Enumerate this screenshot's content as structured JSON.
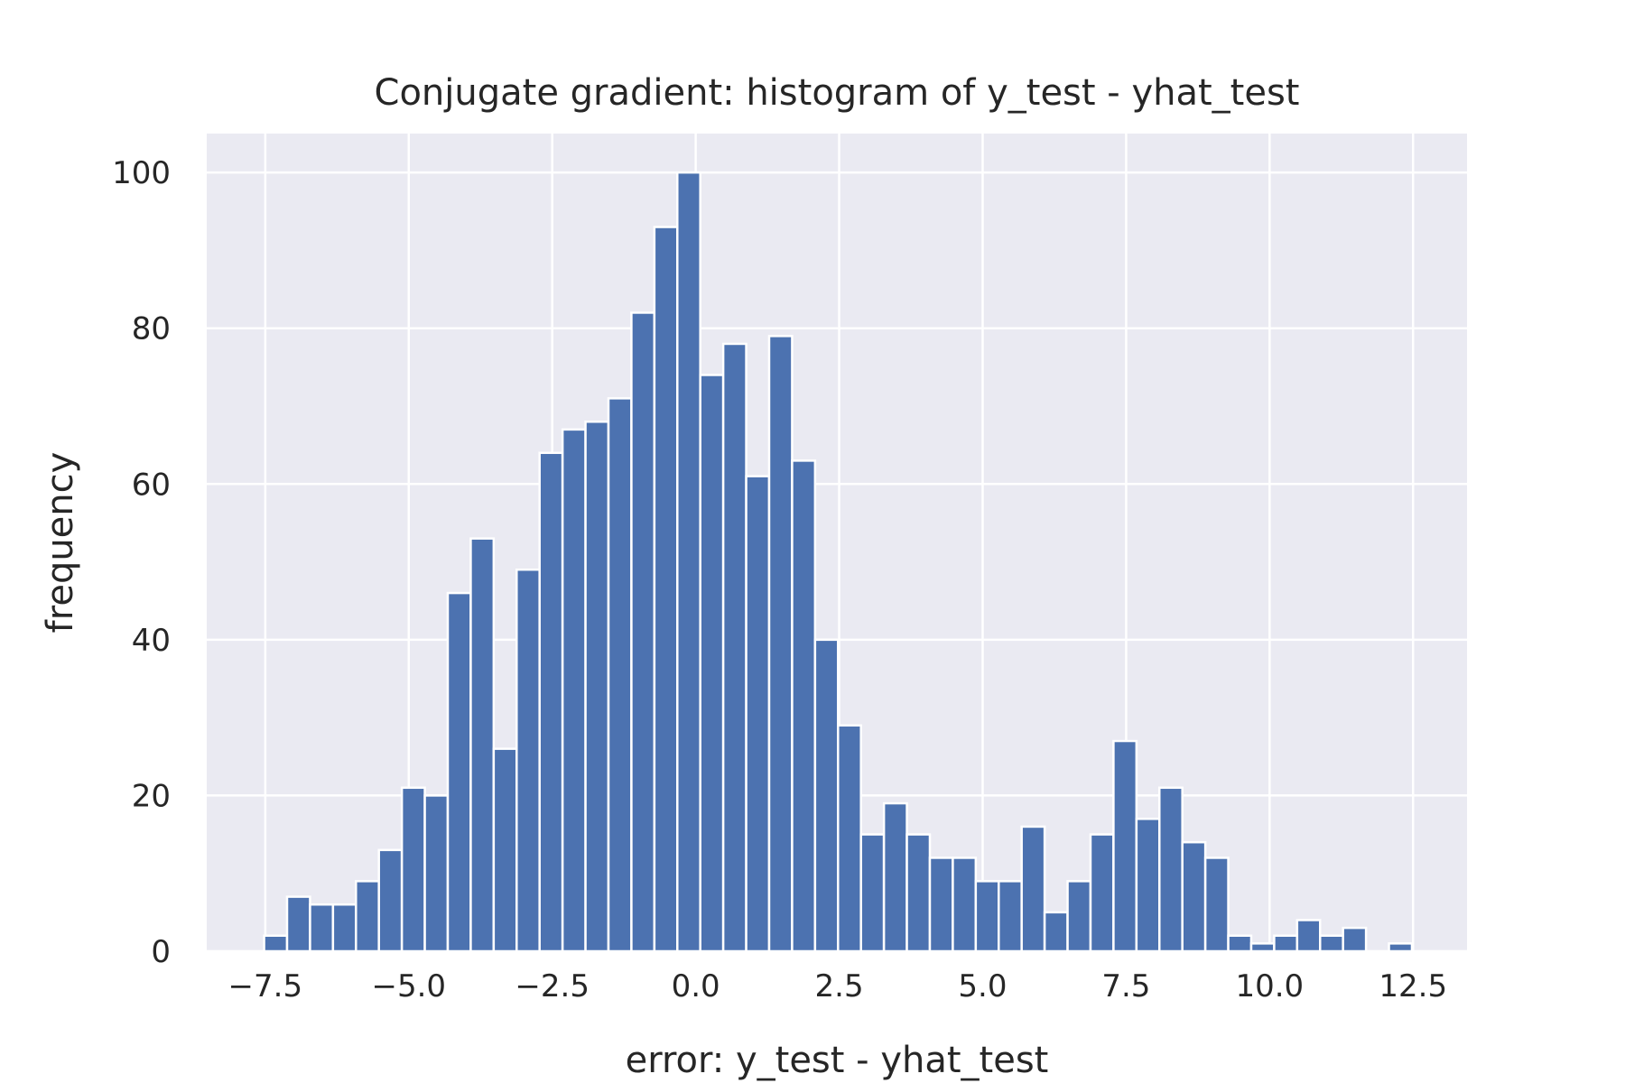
{
  "chart_data": {
    "type": "bar",
    "title": "Conjugate gradient: histogram of y_test - yhat_test",
    "xlabel": "error: y_test - yhat_test",
    "ylabel": "frequency",
    "xlim": [
      -8.52,
      13.44
    ],
    "ylim": [
      0,
      105
    ],
    "grid": true,
    "legend": "none",
    "bar_color": "#4c72b0",
    "plot_background": "#eaeaf2",
    "x_ticks": [
      -7.5,
      -5.0,
      -2.5,
      0.0,
      2.5,
      5.0,
      7.5,
      10.0,
      12.5
    ],
    "x_tick_labels": [
      "−7.5",
      "−5.0",
      "−2.5",
      "0.0",
      "2.5",
      "5.0",
      "7.5",
      "10.0",
      "12.5"
    ],
    "y_ticks": [
      0,
      20,
      40,
      60,
      80,
      100
    ],
    "y_tick_labels": [
      "0",
      "20",
      "40",
      "60",
      "80",
      "100"
    ],
    "bin_start": -7.52,
    "bin_width": 0.4,
    "values": [
      2,
      7,
      6,
      6,
      9,
      13,
      21,
      20,
      46,
      53,
      26,
      49,
      64,
      67,
      68,
      71,
      82,
      93,
      100,
      74,
      78,
      61,
      79,
      63,
      40,
      29,
      15,
      19,
      15,
      12,
      12,
      9,
      9,
      16,
      5,
      9,
      15,
      27,
      17,
      21,
      14,
      12,
      2,
      1,
      2,
      4,
      2,
      3,
      0,
      1
    ]
  }
}
